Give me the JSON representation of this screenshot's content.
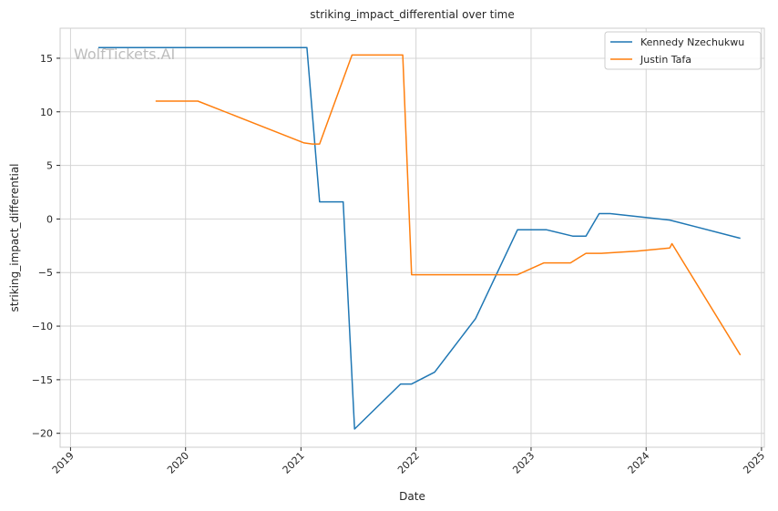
{
  "watermark": "WolfTickets.AI",
  "chart_data": {
    "type": "line",
    "title": "striking_impact_differential over time",
    "xlabel": "Date",
    "ylabel": "striking_impact_differential",
    "xlim": [
      "2018-11-29",
      "2025-01-10"
    ],
    "ylim": [
      -21.3,
      17.8
    ],
    "x_ticks": [
      "2019",
      "2020",
      "2021",
      "2022",
      "2023",
      "2024",
      "2025"
    ],
    "y_ticks": [
      -20,
      -15,
      -10,
      -5,
      0,
      5,
      10,
      15
    ],
    "y_tick_labels": [
      "−20",
      "−15",
      "−10",
      "−5",
      "0",
      "5",
      "10",
      "15"
    ],
    "grid": true,
    "legend_position": "top-right",
    "series": [
      {
        "name": "Kennedy Nzechukwu",
        "color": "#1f77b4",
        "x": [
          "2019-03-30",
          "2021-01-20",
          "2021-03-01",
          "2021-05-15",
          "2021-06-20",
          "2021-11-13",
          "2021-12-18",
          "2022-03-01",
          "2022-07-09",
          "2022-11-19",
          "2023-02-18",
          "2023-05-13",
          "2023-06-24",
          "2023-08-05",
          "2023-09-09",
          "2024-03-16",
          "2024-10-26"
        ],
        "y": [
          16.0,
          16.0,
          1.6,
          1.6,
          -19.6,
          -15.4,
          -15.4,
          -14.3,
          -9.3,
          -1.0,
          -1.0,
          -1.6,
          -1.6,
          0.5,
          0.5,
          -0.1,
          -1.8
        ]
      },
      {
        "name": "Justin Tafa",
        "color": "#ff7f0e",
        "x": [
          "2019-09-28",
          "2020-02-09",
          "2021-01-11",
          "2021-02-06",
          "2021-03-01",
          "2021-06-12",
          "2021-11-20",
          "2021-12-18",
          "2022-11-19",
          "2023-02-11",
          "2023-05-06",
          "2023-06-24",
          "2023-08-12",
          "2023-12-01",
          "2024-03-16",
          "2024-03-23",
          "2024-10-26"
        ],
        "y": [
          11.0,
          11.0,
          7.1,
          7.0,
          7.0,
          15.3,
          15.3,
          -5.2,
          -5.2,
          -4.1,
          -4.1,
          -3.2,
          -3.2,
          -3.0,
          -2.7,
          -2.3,
          -12.7
        ]
      }
    ]
  }
}
